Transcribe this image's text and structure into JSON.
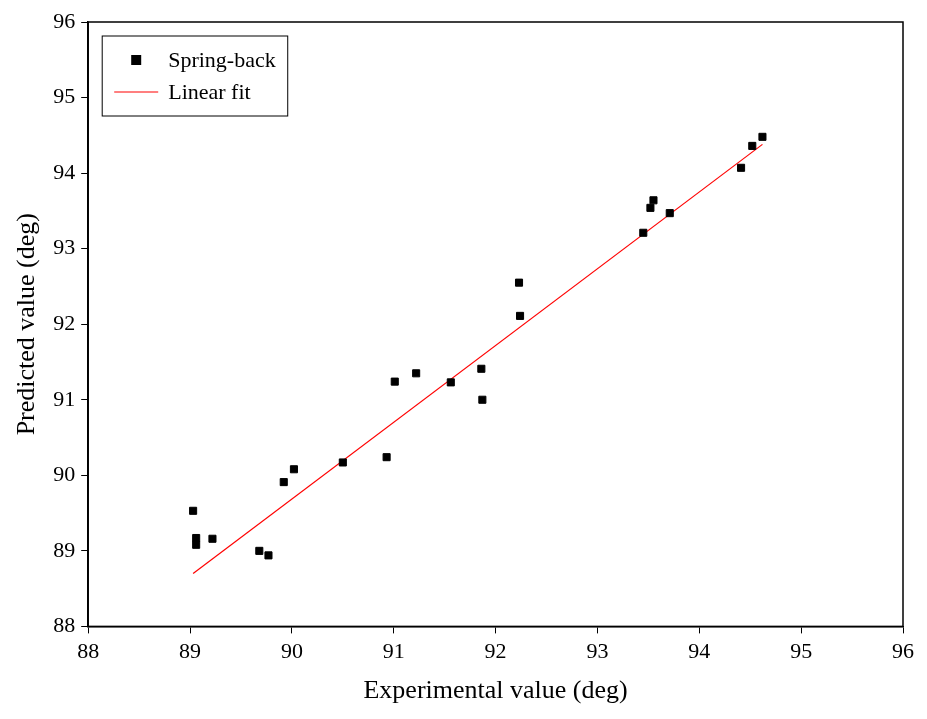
{
  "chart_data": {
    "type": "scatter",
    "x_label": "Experimental value (deg)",
    "y_label": "Predicted value (deg)",
    "series": [
      {
        "name": "Spring-back",
        "type": "scatter",
        "marker": "square",
        "color": "#000000",
        "x": [
          89.03,
          89.06,
          89.06,
          89.22,
          89.68,
          89.77,
          89.92,
          90.02,
          90.5,
          90.93,
          91.01,
          91.22,
          91.56,
          91.86,
          91.87,
          92.23,
          92.24,
          93.45,
          93.52,
          93.55,
          93.71,
          94.41,
          94.52,
          94.62
        ],
        "values": [
          89.53,
          89.17,
          89.08,
          89.16,
          89.0,
          88.94,
          89.91,
          90.08,
          90.17,
          90.24,
          91.24,
          91.35,
          91.23,
          91.41,
          91.0,
          92.55,
          92.11,
          93.21,
          93.54,
          93.64,
          93.47,
          94.07,
          94.36,
          94.48
        ]
      },
      {
        "name": "Linear fit",
        "type": "line",
        "line_style": "solid",
        "color": "#ff0000",
        "x": [
          89.03,
          94.62
        ],
        "values": [
          88.7,
          94.38
        ]
      }
    ],
    "xlim": [
      88,
      96
    ],
    "ylim": [
      88,
      96
    ],
    "xticks": [
      88,
      89,
      90,
      91,
      92,
      93,
      94,
      95,
      96
    ],
    "yticks": [
      88,
      89,
      90,
      91,
      92,
      93,
      94,
      95,
      96
    ],
    "grid": false,
    "legend": "upper left"
  }
}
